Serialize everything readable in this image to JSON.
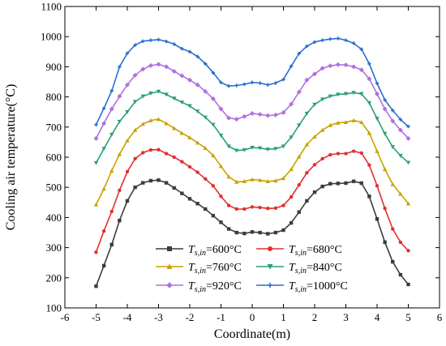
{
  "chart_data": {
    "type": "line",
    "xlabel": "Coordinate(m)",
    "ylabel": "Cooling air temperature(°C)",
    "xlim": [
      -6,
      6
    ],
    "ylim": [
      100,
      1100
    ],
    "xticks": [
      "-6",
      "-5",
      "-4",
      "-3",
      "-2",
      "-1",
      "0",
      "1",
      "2",
      "3",
      "4",
      "5",
      "6"
    ],
    "yticks": [
      "100",
      "200",
      "300",
      "400",
      "500",
      "600",
      "700",
      "800",
      "900",
      "1000",
      "1100"
    ],
    "grid": false,
    "legend_position": "bottom-center",
    "series": [
      {
        "name": "T_s,in=600°C",
        "legend_main": "T",
        "legend_sub": "s,in",
        "legend_rest": "=600°C",
        "color": "#3c3c3c",
        "marker": "square",
        "x": [
          -5.0,
          -4.75,
          -4.5,
          -4.25,
          -4.0,
          -3.75,
          -3.5,
          -3.25,
          -3.0,
          -2.75,
          -2.5,
          -2.25,
          -2.0,
          -1.75,
          -1.5,
          -1.25,
          -1.0,
          -0.75,
          -0.5,
          -0.25,
          0.0,
          0.25,
          0.5,
          0.75,
          1.0,
          1.25,
          1.5,
          1.75,
          2.0,
          2.25,
          2.5,
          2.75,
          3.0,
          3.25,
          3.5,
          3.75,
          4.0,
          4.25,
          4.5,
          4.75,
          5.0
        ],
        "y": [
          172,
          240,
          310,
          390,
          455,
          500,
          515,
          522,
          524,
          515,
          498,
          480,
          462,
          446,
          428,
          406,
          384,
          362,
          350,
          347,
          352,
          350,
          346,
          350,
          358,
          382,
          418,
          455,
          484,
          503,
          512,
          513,
          514,
          520,
          514,
          470,
          395,
          318,
          253,
          210,
          178
        ]
      },
      {
        "name": "T_s,in=680°C",
        "legend_main": "T",
        "legend_sub": "s,in",
        "legend_rest": "=680°C",
        "color": "#e03030",
        "marker": "circle",
        "x": [
          -5.0,
          -4.75,
          -4.5,
          -4.25,
          -4.0,
          -3.75,
          -3.5,
          -3.25,
          -3.0,
          -2.75,
          -2.5,
          -2.25,
          -2.0,
          -1.75,
          -1.5,
          -1.25,
          -1.0,
          -0.75,
          -0.5,
          -0.25,
          0.0,
          0.25,
          0.5,
          0.75,
          1.0,
          1.25,
          1.5,
          1.75,
          2.0,
          2.25,
          2.5,
          2.75,
          3.0,
          3.25,
          3.5,
          3.75,
          4.0,
          4.25,
          4.5,
          4.75,
          5.0
        ],
        "y": [
          285,
          355,
          420,
          490,
          552,
          595,
          615,
          624,
          625,
          612,
          600,
          585,
          568,
          550,
          528,
          505,
          470,
          440,
          428,
          428,
          435,
          433,
          430,
          431,
          440,
          468,
          508,
          548,
          575,
          595,
          608,
          612,
          612,
          620,
          614,
          574,
          505,
          430,
          362,
          318,
          290
        ]
      },
      {
        "name": "T_s,in=760°C",
        "legend_main": "T",
        "legend_sub": "s,in",
        "legend_rest": "=760°C",
        "color": "#c9a200",
        "marker": "triangle-up",
        "x": [
          -5.0,
          -4.75,
          -4.5,
          -4.25,
          -4.0,
          -3.75,
          -3.5,
          -3.25,
          -3.0,
          -2.75,
          -2.5,
          -2.25,
          -2.0,
          -1.75,
          -1.5,
          -1.25,
          -1.0,
          -0.75,
          -0.5,
          -0.25,
          0.0,
          0.25,
          0.5,
          0.75,
          1.0,
          1.25,
          1.5,
          1.75,
          2.0,
          2.25,
          2.5,
          2.75,
          3.0,
          3.25,
          3.5,
          3.75,
          4.0,
          4.25,
          4.5,
          4.75,
          5.0
        ],
        "y": [
          443,
          495,
          555,
          610,
          655,
          690,
          710,
          722,
          726,
          712,
          696,
          680,
          665,
          648,
          630,
          606,
          570,
          535,
          518,
          520,
          526,
          524,
          520,
          522,
          530,
          560,
          602,
          642,
          668,
          690,
          706,
          714,
          716,
          722,
          716,
          680,
          620,
          560,
          510,
          478,
          446
        ]
      },
      {
        "name": "T_s,in=840°C",
        "legend_main": "T",
        "legend_sub": "s,in",
        "legend_rest": "=840°C",
        "color": "#2aa070",
        "marker": "triangle-down",
        "x": [
          -5.0,
          -4.75,
          -4.5,
          -4.25,
          -4.0,
          -3.75,
          -3.5,
          -3.25,
          -3.0,
          -2.75,
          -2.5,
          -2.25,
          -2.0,
          -1.75,
          -1.5,
          -1.25,
          -1.0,
          -0.75,
          -0.5,
          -0.25,
          0.0,
          0.25,
          0.5,
          0.75,
          1.0,
          1.25,
          1.5,
          1.75,
          2.0,
          2.25,
          2.5,
          2.75,
          3.0,
          3.25,
          3.5,
          3.75,
          4.0,
          4.25,
          4.5,
          4.75,
          5.0
        ],
        "y": [
          581,
          628,
          675,
          718,
          750,
          784,
          802,
          812,
          818,
          808,
          795,
          782,
          770,
          752,
          732,
          708,
          672,
          636,
          622,
          624,
          632,
          630,
          626,
          628,
          636,
          666,
          706,
          745,
          775,
          792,
          802,
          808,
          810,
          814,
          810,
          780,
          728,
          678,
          634,
          605,
          582
        ]
      },
      {
        "name": "T_s,in=920°C",
        "legend_main": "T",
        "legend_sub": "s,in",
        "legend_rest": "=920°C",
        "color": "#b070e0",
        "marker": "diamond",
        "x": [
          -5.0,
          -4.75,
          -4.5,
          -4.25,
          -4.0,
          -3.75,
          -3.5,
          -3.25,
          -3.0,
          -2.75,
          -2.5,
          -2.25,
          -2.0,
          -1.75,
          -1.5,
          -1.25,
          -1.0,
          -0.75,
          -0.5,
          -0.25,
          0.0,
          0.25,
          0.5,
          0.75,
          1.0,
          1.25,
          1.5,
          1.75,
          2.0,
          2.25,
          2.5,
          2.75,
          3.0,
          3.25,
          3.5,
          3.75,
          4.0,
          4.25,
          4.5,
          4.75,
          5.0
        ],
        "y": [
          662,
          712,
          760,
          802,
          840,
          872,
          892,
          904,
          908,
          900,
          885,
          870,
          856,
          840,
          818,
          794,
          760,
          730,
          726,
          735,
          745,
          742,
          738,
          740,
          748,
          776,
          816,
          856,
          876,
          895,
          903,
          907,
          906,
          900,
          890,
          860,
          810,
          760,
          720,
          690,
          662
        ]
      },
      {
        "name": "T_s,in=1000°C",
        "legend_main": "T",
        "legend_sub": "s,in",
        "legend_rest": "=1000°C",
        "color": "#2a6fd0",
        "marker": "cross",
        "x": [
          -5.0,
          -4.75,
          -4.5,
          -4.25,
          -4.0,
          -3.75,
          -3.5,
          -3.25,
          -3.0,
          -2.75,
          -2.5,
          -2.25,
          -2.0,
          -1.75,
          -1.5,
          -1.25,
          -1.0,
          -0.75,
          -0.5,
          -0.25,
          0.0,
          0.25,
          0.5,
          0.75,
          1.0,
          1.25,
          1.5,
          1.75,
          2.0,
          2.25,
          2.5,
          2.75,
          3.0,
          3.25,
          3.5,
          3.75,
          4.0,
          4.25,
          4.5,
          4.75,
          5.0
        ],
        "y": [
          708,
          762,
          820,
          900,
          945,
          972,
          985,
          988,
          990,
          984,
          975,
          960,
          950,
          934,
          910,
          880,
          848,
          836,
          838,
          842,
          848,
          846,
          840,
          846,
          858,
          902,
          944,
          968,
          982,
          988,
          992,
          994,
          988,
          978,
          958,
          910,
          845,
          790,
          755,
          725,
          702
        ]
      }
    ]
  }
}
